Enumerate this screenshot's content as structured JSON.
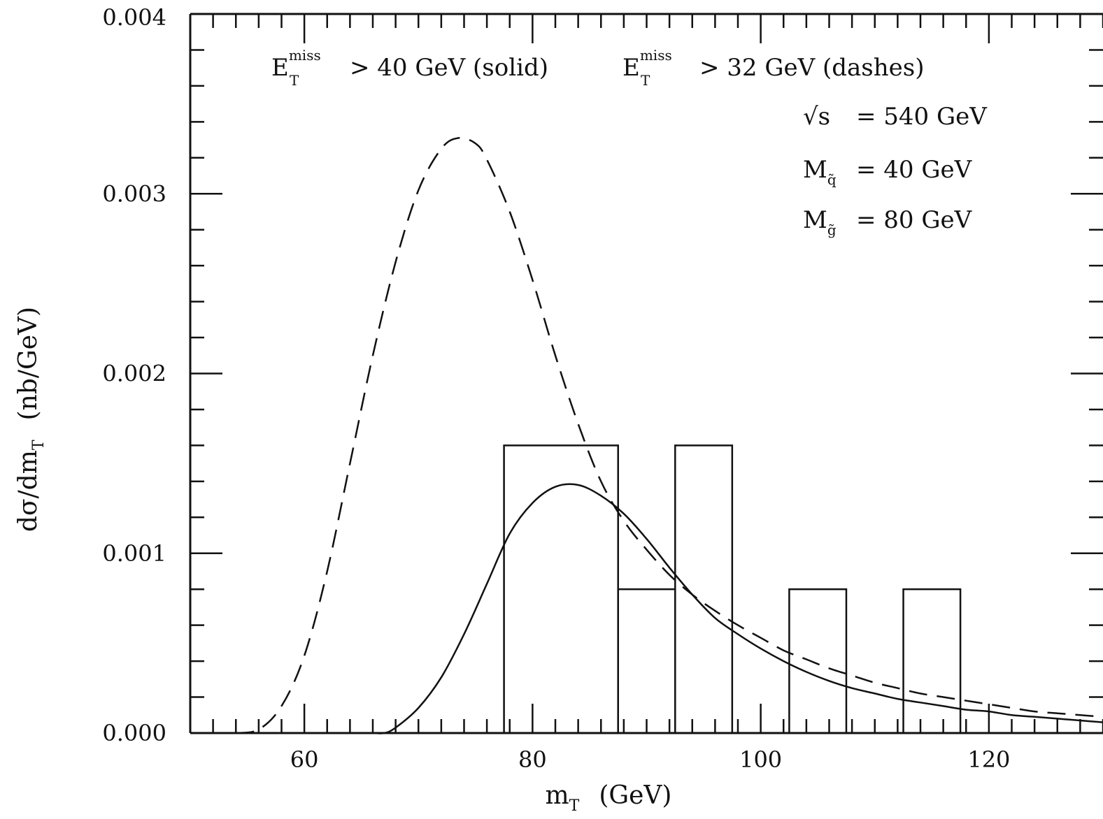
{
  "chart_data": {
    "type": "line",
    "xlabel": "(GeV)",
    "xlabel_symbol": "m",
    "xlabel_subscript": "T",
    "ylabel": "(nb/GeV)",
    "ylabel_symbol": "dσ/dm",
    "ylabel_subscript": "T",
    "xlim": [
      50,
      130
    ],
    "ylim": [
      0,
      0.004
    ],
    "x_major_ticks": [
      60,
      80,
      100,
      120
    ],
    "x_tick_labels": [
      "60",
      "80",
      "100",
      "120"
    ],
    "x_minor_step": 2,
    "y_major_ticks": [
      0,
      0.001,
      0.002,
      0.003,
      0.004
    ],
    "y_tick_labels": [
      "0.000",
      "0.001",
      "0.002",
      "0.003",
      "0.004"
    ],
    "y_minor_step": 0.0002,
    "grid": false,
    "annotations": {
      "cut_solid_symbol": "E",
      "cut_solid_sup": "miss",
      "cut_solid_sub": "T",
      "cut_solid_text": "> 40 GeV (solid)",
      "cut_dash_symbol": "E",
      "cut_dash_sup": "miss",
      "cut_dash_sub": "T",
      "cut_dash_text": "> 32 GeV (dashes)",
      "sqrt_s": "√s",
      "sqrt_s_value": "= 540 GeV",
      "mq_symbol": "M",
      "mq_sub": "q̃",
      "mq_value": "= 40 GeV",
      "mg_symbol": "M",
      "mg_sub": "g̃",
      "mg_value": "= 80 GeV"
    },
    "series": [
      {
        "style": "solid",
        "x": [
          62,
          64,
          66,
          67,
          68,
          70,
          72,
          74,
          76,
          78,
          80,
          82,
          84,
          86,
          88,
          90,
          92,
          94,
          96,
          98,
          100,
          102,
          104,
          106,
          108,
          110,
          112,
          114,
          116,
          118,
          120,
          122,
          124,
          126,
          128,
          130
        ],
        "y": [
          0,
          0,
          0,
          0,
          3e-05,
          0.00014,
          0.00031,
          0.00055,
          0.00083,
          0.00111,
          0.00128,
          0.00137,
          0.00138,
          0.00132,
          0.00122,
          0.00108,
          0.00092,
          0.00077,
          0.00064,
          0.00055,
          0.00047,
          0.0004,
          0.00034,
          0.00029,
          0.00025,
          0.00022,
          0.00019,
          0.00017,
          0.00015,
          0.00013,
          0.00012,
          0.0001,
          9e-05,
          8e-05,
          7e-05,
          6e-05
        ]
      },
      {
        "style": "dashed",
        "x": [
          54,
          56,
          58,
          60,
          62,
          64,
          66,
          68,
          70,
          72,
          73.5,
          75,
          76,
          78,
          80,
          82,
          84,
          86,
          88,
          90,
          92,
          94,
          96,
          98,
          100,
          102,
          104,
          106,
          108,
          110,
          112,
          114,
          116,
          118,
          120,
          122,
          124,
          126,
          128,
          130
        ],
        "y": [
          0,
          2e-05,
          0.00015,
          0.00043,
          0.0009,
          0.0015,
          0.0021,
          0.00262,
          0.00302,
          0.00325,
          0.00331,
          0.00328,
          0.00319,
          0.0029,
          0.00252,
          0.0021,
          0.00172,
          0.0014,
          0.00118,
          0.00102,
          0.00088,
          0.00077,
          0.00068,
          0.0006,
          0.00053,
          0.00046,
          0.00041,
          0.00036,
          0.00032,
          0.00028,
          0.00025,
          0.00022,
          0.0002,
          0.00018,
          0.00016,
          0.00014,
          0.00012,
          0.00011,
          0.0001,
          9e-05
        ]
      }
    ],
    "histogram": [
      {
        "x0": 77.5,
        "x1": 87.5,
        "y": 0.0016
      },
      {
        "x0": 87.5,
        "x1": 92.5,
        "y": 0.0008
      },
      {
        "x0": 92.5,
        "x1": 97.5,
        "y": 0.0016
      },
      {
        "x0": 102.5,
        "x1": 107.5,
        "y": 0.0008
      },
      {
        "x0": 112.5,
        "x1": 117.5,
        "y": 0.0008
      }
    ]
  }
}
